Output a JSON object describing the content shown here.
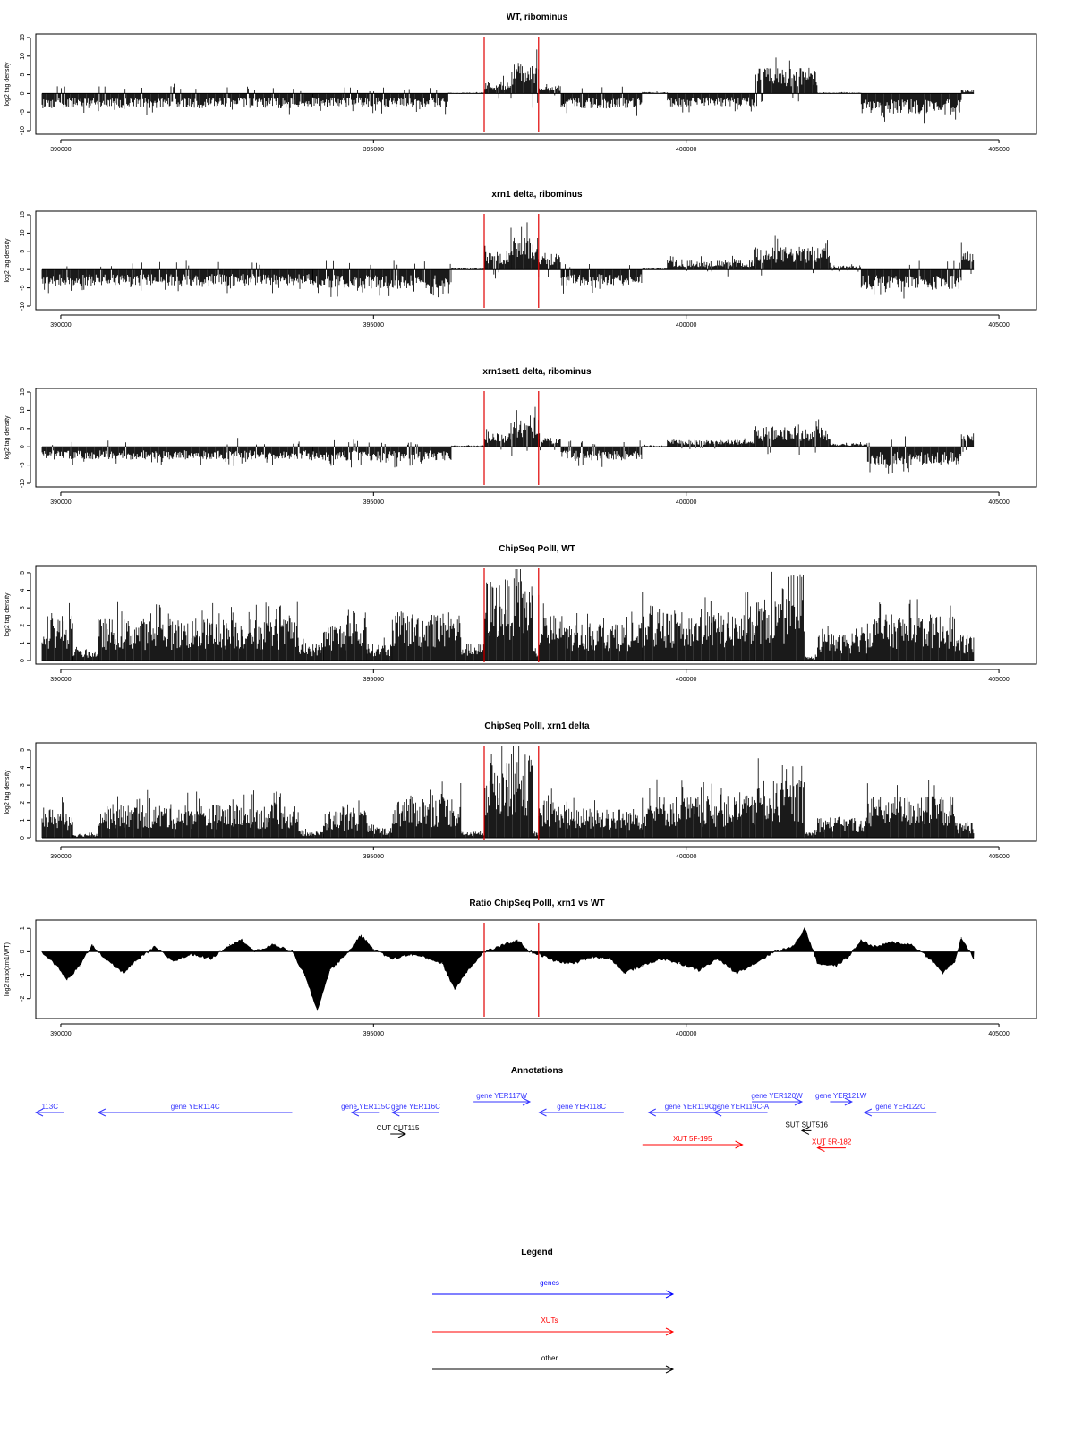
{
  "chart_data": [
    {
      "type": "bar",
      "title": "WT, ribominus",
      "ylabel": "log2 tag density",
      "ylim": [
        -10,
        15
      ],
      "yticks": [
        -10,
        -5,
        0,
        5,
        10,
        15
      ],
      "xlim": [
        389600,
        405600
      ],
      "xticks": [
        390000,
        395000,
        400000,
        405000
      ],
      "markers": [
        396770,
        397640
      ],
      "segments": [
        {
          "start": 389700,
          "end": 394000,
          "value": -3.2
        },
        {
          "start": 394000,
          "end": 396200,
          "value": -3.0
        },
        {
          "start": 396200,
          "end": 396770,
          "value": 0.2
        },
        {
          "start": 396770,
          "end": 397200,
          "value": 2.5
        },
        {
          "start": 397200,
          "end": 397640,
          "value": 6.5
        },
        {
          "start": 397640,
          "end": 398000,
          "value": 2.0
        },
        {
          "start": 398000,
          "end": 399300,
          "value": -3.2
        },
        {
          "start": 399300,
          "end": 399700,
          "value": 0.3
        },
        {
          "start": 399700,
          "end": 401100,
          "value": -2.8
        },
        {
          "start": 401100,
          "end": 402100,
          "value": 5.5
        },
        {
          "start": 402100,
          "end": 402800,
          "value": 0.2
        },
        {
          "start": 402800,
          "end": 404400,
          "value": -4.5
        },
        {
          "start": 404400,
          "end": 404600,
          "value": 0.8
        }
      ]
    },
    {
      "type": "bar",
      "title": "xrn1 delta, ribominus",
      "ylabel": "log2 tag density",
      "ylim": [
        -10,
        15
      ],
      "yticks": [
        -10,
        -5,
        0,
        5,
        10,
        15
      ],
      "xlim": [
        389600,
        405600
      ],
      "xticks": [
        390000,
        395000,
        400000,
        405000
      ],
      "markers": [
        396770,
        397640
      ],
      "segments": [
        {
          "start": 389700,
          "end": 394000,
          "value": -3.5
        },
        {
          "start": 394000,
          "end": 396250,
          "value": -4.2
        },
        {
          "start": 396250,
          "end": 396770,
          "value": 0.3
        },
        {
          "start": 396770,
          "end": 397200,
          "value": 4.0
        },
        {
          "start": 397200,
          "end": 397640,
          "value": 7.0
        },
        {
          "start": 397640,
          "end": 398000,
          "value": 3.5
        },
        {
          "start": 398000,
          "end": 399300,
          "value": -3.5
        },
        {
          "start": 399300,
          "end": 399700,
          "value": 0.3
        },
        {
          "start": 399700,
          "end": 401100,
          "value": 2.0
        },
        {
          "start": 401100,
          "end": 402300,
          "value": 5.0
        },
        {
          "start": 402300,
          "end": 402800,
          "value": 1.0
        },
        {
          "start": 402800,
          "end": 404400,
          "value": -4.5
        },
        {
          "start": 404400,
          "end": 404600,
          "value": 4.0
        }
      ]
    },
    {
      "type": "bar",
      "title": "xrn1set1 delta, ribominus",
      "ylabel": "log2 tag density",
      "ylim": [
        -10,
        15
      ],
      "yticks": [
        -10,
        -5,
        0,
        5,
        10,
        15
      ],
      "xlim": [
        389600,
        405600
      ],
      "xticks": [
        390000,
        395000,
        400000,
        405000
      ],
      "markers": [
        396770,
        397640
      ],
      "segments": [
        {
          "start": 389700,
          "end": 394000,
          "value": -2.8
        },
        {
          "start": 394000,
          "end": 396250,
          "value": -3.0
        },
        {
          "start": 396250,
          "end": 396770,
          "value": 0.3
        },
        {
          "start": 396770,
          "end": 397200,
          "value": 3.0
        },
        {
          "start": 397200,
          "end": 397640,
          "value": 6.0
        },
        {
          "start": 397640,
          "end": 398000,
          "value": 2.0
        },
        {
          "start": 398000,
          "end": 399300,
          "value": -3.0
        },
        {
          "start": 399300,
          "end": 399700,
          "value": 0.3
        },
        {
          "start": 399700,
          "end": 401100,
          "value": 1.5
        },
        {
          "start": 401100,
          "end": 402300,
          "value": 4.5
        },
        {
          "start": 402300,
          "end": 402900,
          "value": 0.8
        },
        {
          "start": 402900,
          "end": 404400,
          "value": -4.0
        },
        {
          "start": 404400,
          "end": 404600,
          "value": 3.0
        }
      ]
    },
    {
      "type": "bar",
      "title": "ChipSeq PolII, WT",
      "ylabel": "log2 tag density",
      "ylim": [
        0,
        5.2
      ],
      "yticks": [
        0,
        1,
        2,
        3,
        4,
        5
      ],
      "xlim": [
        389600,
        405600
      ],
      "xticks": [
        390000,
        395000,
        400000,
        405000
      ],
      "markers": [
        396770,
        397640
      ],
      "segments": [
        {
          "start": 389700,
          "end": 390200,
          "value": 2.2
        },
        {
          "start": 390200,
          "end": 390600,
          "value": 0.5
        },
        {
          "start": 390600,
          "end": 393800,
          "value": 2.0
        },
        {
          "start": 393800,
          "end": 394200,
          "value": 0.8
        },
        {
          "start": 394200,
          "end": 394900,
          "value": 1.8
        },
        {
          "start": 394900,
          "end": 395300,
          "value": 0.8
        },
        {
          "start": 395300,
          "end": 396400,
          "value": 2.3
        },
        {
          "start": 396400,
          "end": 396770,
          "value": 0.8
        },
        {
          "start": 396770,
          "end": 397550,
          "value": 3.9
        },
        {
          "start": 397550,
          "end": 397640,
          "value": 0.5
        },
        {
          "start": 397640,
          "end": 398100,
          "value": 2.2
        },
        {
          "start": 398100,
          "end": 399300,
          "value": 1.8
        },
        {
          "start": 399300,
          "end": 401100,
          "value": 2.3
        },
        {
          "start": 401100,
          "end": 401900,
          "value": 3.0
        },
        {
          "start": 401900,
          "end": 402100,
          "value": 0.2
        },
        {
          "start": 402100,
          "end": 402900,
          "value": 1.3
        },
        {
          "start": 402900,
          "end": 404300,
          "value": 2.2
        },
        {
          "start": 404300,
          "end": 404600,
          "value": 1.2
        }
      ]
    },
    {
      "type": "bar",
      "title": "ChipSeq PolII, xrn1 delta",
      "ylabel": "log2 tag density",
      "ylim": [
        0,
        5.2
      ],
      "yticks": [
        0,
        1,
        2,
        3,
        4,
        5
      ],
      "xlim": [
        389600,
        405600
      ],
      "xticks": [
        390000,
        395000,
        400000,
        405000
      ],
      "markers": [
        396770,
        397640
      ],
      "segments": [
        {
          "start": 389700,
          "end": 390200,
          "value": 1.4
        },
        {
          "start": 390200,
          "end": 390600,
          "value": 0.2
        },
        {
          "start": 390600,
          "end": 393800,
          "value": 1.6
        },
        {
          "start": 393800,
          "end": 394200,
          "value": 0.3
        },
        {
          "start": 394200,
          "end": 394900,
          "value": 1.3
        },
        {
          "start": 394900,
          "end": 395300,
          "value": 0.5
        },
        {
          "start": 395300,
          "end": 396400,
          "value": 2.0
        },
        {
          "start": 396400,
          "end": 396770,
          "value": 0.3
        },
        {
          "start": 396770,
          "end": 397550,
          "value": 4.0
        },
        {
          "start": 397550,
          "end": 397640,
          "value": 0.3
        },
        {
          "start": 397640,
          "end": 398100,
          "value": 1.8
        },
        {
          "start": 398100,
          "end": 399300,
          "value": 1.4
        },
        {
          "start": 399300,
          "end": 401100,
          "value": 2.0
        },
        {
          "start": 401100,
          "end": 401900,
          "value": 2.7
        },
        {
          "start": 401900,
          "end": 402100,
          "value": 0.3
        },
        {
          "start": 402100,
          "end": 402900,
          "value": 1.0
        },
        {
          "start": 402900,
          "end": 404300,
          "value": 2.0
        },
        {
          "start": 404300,
          "end": 404600,
          "value": 0.8
        }
      ]
    },
    {
      "type": "area",
      "title": "Ratio ChipSeq PolII, xrn1 vs WT",
      "ylabel": "log2 ratio(xrn1/WT)",
      "ylim": [
        -2.7,
        1.2
      ],
      "yticks": [
        -2,
        -1,
        0,
        1
      ],
      "xlim": [
        389600,
        405600
      ],
      "xticks": [
        390000,
        395000,
        400000,
        405000
      ],
      "markers": [
        396770,
        397640
      ],
      "points": [
        [
          389700,
          0.0
        ],
        [
          389900,
          -0.5
        ],
        [
          390100,
          -1.2
        ],
        [
          390300,
          -0.6
        ],
        [
          390500,
          0.3
        ],
        [
          390700,
          -0.3
        ],
        [
          391000,
          -0.9
        ],
        [
          391200,
          -0.4
        ],
        [
          391500,
          0.2
        ],
        [
          391800,
          -0.4
        ],
        [
          392100,
          -0.1
        ],
        [
          392400,
          -0.3
        ],
        [
          392700,
          0.3
        ],
        [
          392900,
          0.5
        ],
        [
          393100,
          0.0
        ],
        [
          393400,
          0.3
        ],
        [
          393700,
          0.0
        ],
        [
          393900,
          -1.0
        ],
        [
          394100,
          -2.5
        ],
        [
          394300,
          -0.8
        ],
        [
          394600,
          0.0
        ],
        [
          394800,
          0.7
        ],
        [
          395000,
          0.1
        ],
        [
          395300,
          -0.3
        ],
        [
          395600,
          -0.1
        ],
        [
          395900,
          -0.3
        ],
        [
          396100,
          -0.5
        ],
        [
          396300,
          -1.6
        ],
        [
          396500,
          -0.8
        ],
        [
          396770,
          0.0
        ],
        [
          397000,
          0.2
        ],
        [
          397300,
          0.5
        ],
        [
          397500,
          0.0
        ],
        [
          397640,
          -0.1
        ],
        [
          397900,
          -0.4
        ],
        [
          398200,
          -0.5
        ],
        [
          398500,
          -0.2
        ],
        [
          398800,
          -0.3
        ],
        [
          399000,
          -0.9
        ],
        [
          399300,
          -0.6
        ],
        [
          399600,
          -0.3
        ],
        [
          399900,
          -0.5
        ],
        [
          400200,
          -0.8
        ],
        [
          400500,
          -0.3
        ],
        [
          400800,
          -0.9
        ],
        [
          401100,
          -0.5
        ],
        [
          401400,
          0.0
        ],
        [
          401700,
          0.2
        ],
        [
          401900,
          1.0
        ],
        [
          402100,
          -0.5
        ],
        [
          402400,
          -0.6
        ],
        [
          402600,
          -0.2
        ],
        [
          402800,
          0.5
        ],
        [
          403000,
          0.2
        ],
        [
          403300,
          0.4
        ],
        [
          403600,
          0.3
        ],
        [
          403900,
          -0.3
        ],
        [
          404100,
          -0.9
        ],
        [
          404300,
          -0.4
        ],
        [
          404400,
          0.6
        ],
        [
          404600,
          -0.3
        ]
      ]
    }
  ],
  "annotations": {
    "title": "Annotations",
    "features": [
      {
        "label": "113C",
        "kind": "genes",
        "start": 389600,
        "end": 390050,
        "strand": "-",
        "row": 0
      },
      {
        "label": "gene YER114C",
        "kind": "genes",
        "start": 390600,
        "end": 393700,
        "strand": "-",
        "row": 0
      },
      {
        "label": "gene YER115C",
        "kind": "genes",
        "start": 394650,
        "end": 395100,
        "strand": "-",
        "row": 0
      },
      {
        "label": "gene YER116C",
        "kind": "genes",
        "start": 395300,
        "end": 396050,
        "strand": "-",
        "row": 0
      },
      {
        "label": "gene YER117W",
        "kind": "genes",
        "start": 396600,
        "end": 397500,
        "strand": "+",
        "row": -1
      },
      {
        "label": "gene YER118C",
        "kind": "genes",
        "start": 397650,
        "end": 399000,
        "strand": "-",
        "row": 0
      },
      {
        "label": "gene YER119C",
        "kind": "genes",
        "start": 399400,
        "end": 400700,
        "strand": "-",
        "row": 0
      },
      {
        "label": "gene YER119C-A",
        "kind": "genes",
        "start": 400450,
        "end": 401300,
        "strand": "-",
        "row": 0
      },
      {
        "label": "gene YER120W",
        "kind": "genes",
        "start": 401050,
        "end": 401850,
        "strand": "+",
        "row": -1
      },
      {
        "label": "gene YER121W",
        "kind": "genes",
        "start": 402300,
        "end": 402650,
        "strand": "+",
        "row": -1
      },
      {
        "label": "gene YER122C",
        "kind": "genes",
        "start": 402850,
        "end": 404000,
        "strand": "-",
        "row": 0
      },
      {
        "label": "CUT CUT115",
        "kind": "other",
        "start": 395270,
        "end": 395510,
        "strand": "+",
        "row": 2
      },
      {
        "label": "SUT SUT516",
        "kind": "other",
        "start": 401850,
        "end": 402000,
        "strand": "-",
        "row": 1.7
      },
      {
        "label": "XUT 5F-195",
        "kind": "XUTs",
        "start": 399300,
        "end": 400900,
        "strand": "+",
        "row": 3
      },
      {
        "label": "XUT 5R-182",
        "kind": "XUTs",
        "start": 402100,
        "end": 402550,
        "strand": "-",
        "row": 3.3
      }
    ]
  },
  "legend": {
    "title": "Legend",
    "items": [
      {
        "label": "genes",
        "color": "#0000ff"
      },
      {
        "label": "XUTs",
        "color": "#ff0000"
      },
      {
        "label": "other",
        "color": "#000000"
      }
    ]
  },
  "colors": {
    "bars": "#000000",
    "marker": "#ff0000",
    "genes": "#3333ff",
    "XUTs": "#ff0000",
    "other": "#000000"
  }
}
